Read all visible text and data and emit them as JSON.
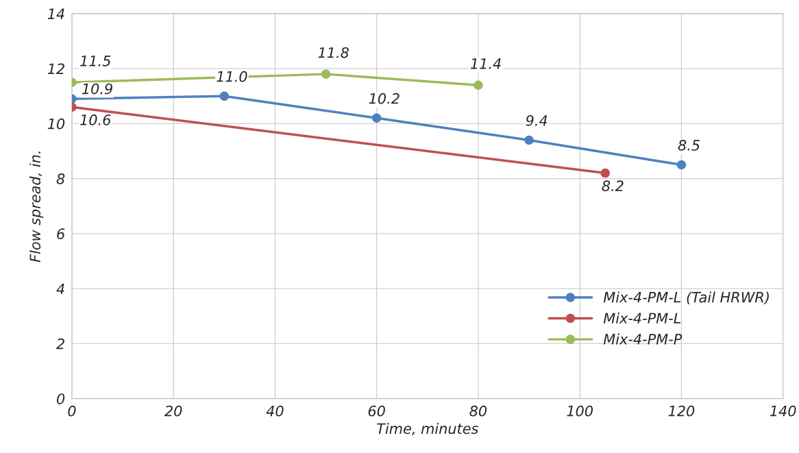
{
  "chart_data": {
    "type": "line",
    "xlabel": "Time, minutes",
    "ylabel": "Flow spread, in.",
    "xlim": [
      0,
      140
    ],
    "xticks": [
      0,
      20,
      40,
      60,
      80,
      100,
      120,
      140
    ],
    "ylim": [
      0,
      14
    ],
    "yticks": [
      0,
      2,
      4,
      6,
      8,
      10,
      12,
      14
    ],
    "grid": true,
    "legend": "lower right",
    "marker": "circle",
    "line_style": "solid",
    "series": [
      {
        "name": "Mix-4-PM-L (Tail HRWR)",
        "color": "#4f81bd",
        "x": [
          0,
          30,
          60,
          90,
          120
        ],
        "values": [
          10.9,
          11.0,
          10.2,
          9.4,
          8.5
        ],
        "value_labels": [
          "10.9",
          "11.0",
          "10.2",
          "9.4",
          "8.5"
        ]
      },
      {
        "name": "Mix-4-PM-L",
        "color": "#c0504d",
        "x": [
          0,
          105
        ],
        "values": [
          10.6,
          8.2
        ],
        "value_labels": [
          "10.6",
          "8.2"
        ]
      },
      {
        "name": "Mix-4-PM-P",
        "color": "#9bbb59",
        "x": [
          0,
          50,
          80
        ],
        "values": [
          11.5,
          11.8,
          11.4
        ],
        "value_labels": [
          "11.5",
          "11.8",
          "11.4"
        ]
      }
    ]
  }
}
